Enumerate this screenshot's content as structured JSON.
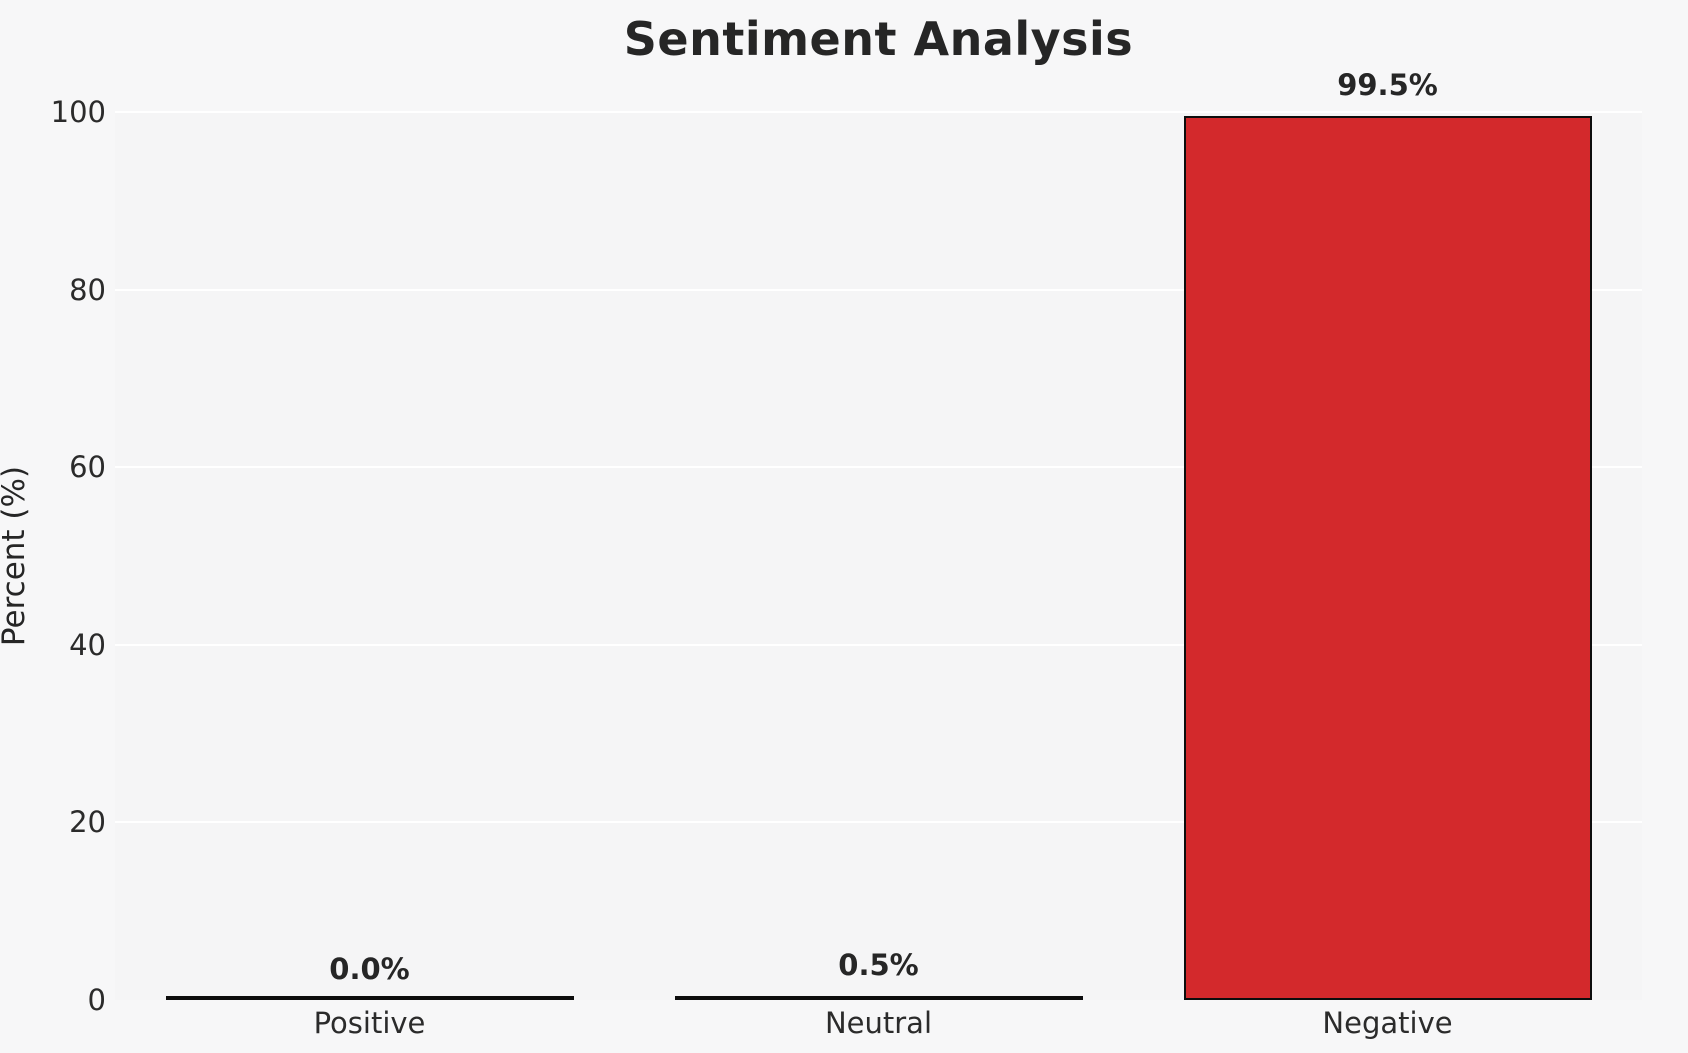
{
  "chart_data": {
    "type": "bar",
    "title": "Sentiment Analysis",
    "xlabel": "",
    "ylabel": "Percent (%)",
    "categories": [
      "Positive",
      "Neutral",
      "Negative"
    ],
    "values": [
      0.0,
      0.5,
      99.5
    ],
    "value_labels": [
      "0.0%",
      "0.5%",
      "99.5%"
    ],
    "bar_colors": [
      "#f5f5f6",
      "#f2e135",
      "#d3292c"
    ],
    "bar_edge_color": "#0d0d0d",
    "ylim": [
      0,
      100
    ],
    "yticks": [
      0,
      20,
      40,
      60,
      80,
      100
    ],
    "grid": "horizontal white gridlines",
    "background_color": "#f7f7f8",
    "legend": "none"
  }
}
